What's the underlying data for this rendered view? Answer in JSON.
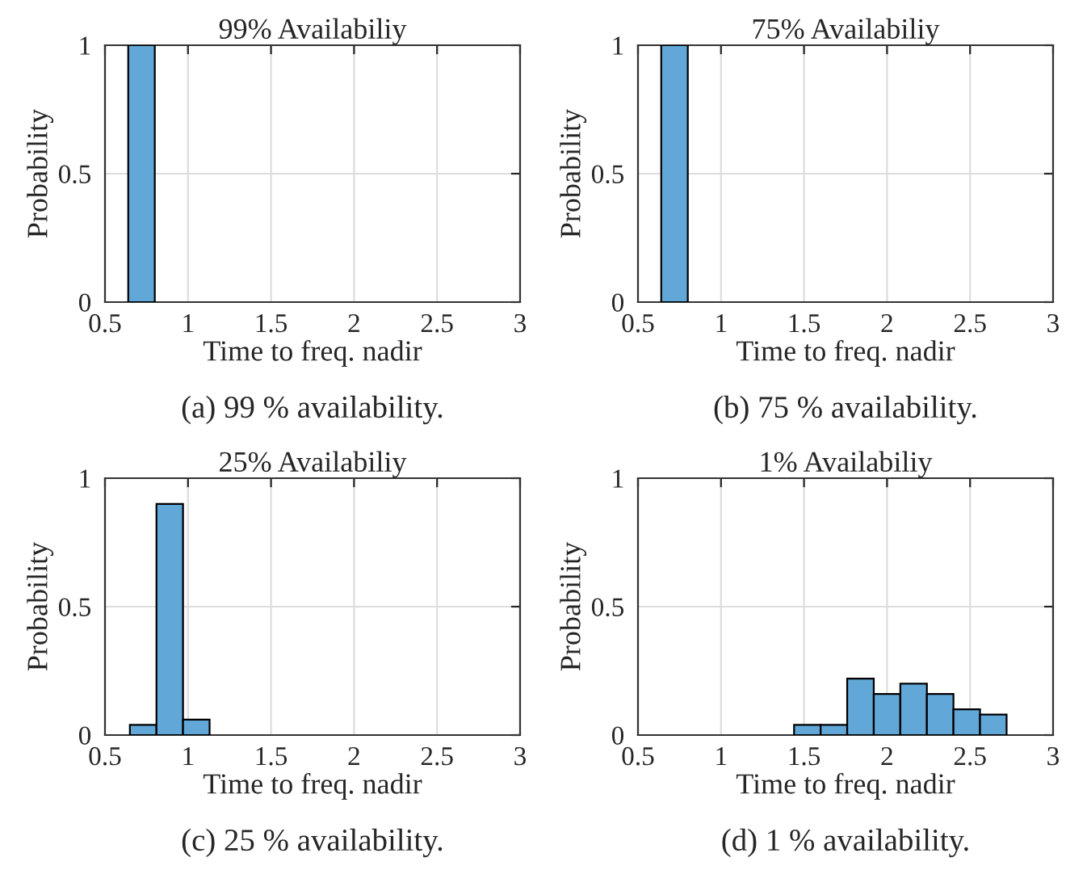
{
  "chart_data": [
    {
      "type": "histogram",
      "title": "99% Availabiliy",
      "xlabel": "Time to freq. nadir",
      "ylabel": "Probability",
      "bins": [
        0.64,
        0.8
      ],
      "values": [
        1
      ],
      "color": "#61a8d8",
      "xlim": [
        0.5,
        3
      ],
      "xticks": [
        0.5,
        1,
        1.5,
        2,
        2.5,
        3
      ],
      "ylim": [
        0,
        1
      ],
      "yticks": [
        0,
        0.5,
        1
      ],
      "grid": true,
      "annotations": [
        "(a) 99 % availability."
      ]
    },
    {
      "type": "histogram",
      "title": "75% Availabiliy",
      "xlabel": "Time to freq. nadir",
      "ylabel": "Probability",
      "bins": [
        0.64,
        0.8
      ],
      "values": [
        1
      ],
      "color": "#61a8d8",
      "xlim": [
        0.5,
        3
      ],
      "xticks": [
        0.5,
        1,
        1.5,
        2,
        2.5,
        3
      ],
      "ylim": [
        0,
        1
      ],
      "yticks": [
        0,
        0.5,
        1
      ],
      "grid": true,
      "annotations": [
        "(b) 75 % availability."
      ]
    },
    {
      "type": "histogram",
      "title": "25% Availabiliy",
      "xlabel": "Time to freq. nadir",
      "ylabel": "Probability",
      "bins": [
        0.65,
        0.81,
        0.97,
        1.13
      ],
      "values": [
        0.04,
        0.9,
        0.06
      ],
      "color": "#61a8d8",
      "xlim": [
        0.5,
        3
      ],
      "xticks": [
        0.5,
        1,
        1.5,
        2,
        2.5,
        3
      ],
      "ylim": [
        0,
        1
      ],
      "yticks": [
        0,
        0.5,
        1
      ],
      "grid": true,
      "annotations": [
        "(c) 25 % availability."
      ]
    },
    {
      "type": "histogram",
      "title": "1% Availabiliy",
      "xlabel": "Time to freq. nadir",
      "ylabel": "Probability",
      "bins": [
        1.44,
        1.6,
        1.76,
        1.92,
        2.08,
        2.24,
        2.4,
        2.56,
        2.72
      ],
      "values": [
        0.04,
        0.04,
        0.22,
        0.16,
        0.2,
        0.16,
        0.1,
        0.08
      ],
      "color": "#61a8d8",
      "xlim": [
        0.5,
        3
      ],
      "xticks": [
        0.5,
        1,
        1.5,
        2,
        2.5,
        3
      ],
      "ylim": [
        0,
        1
      ],
      "yticks": [
        0,
        0.5,
        1
      ],
      "grid": true,
      "annotations": [
        "(d) 1 % availability."
      ]
    }
  ]
}
